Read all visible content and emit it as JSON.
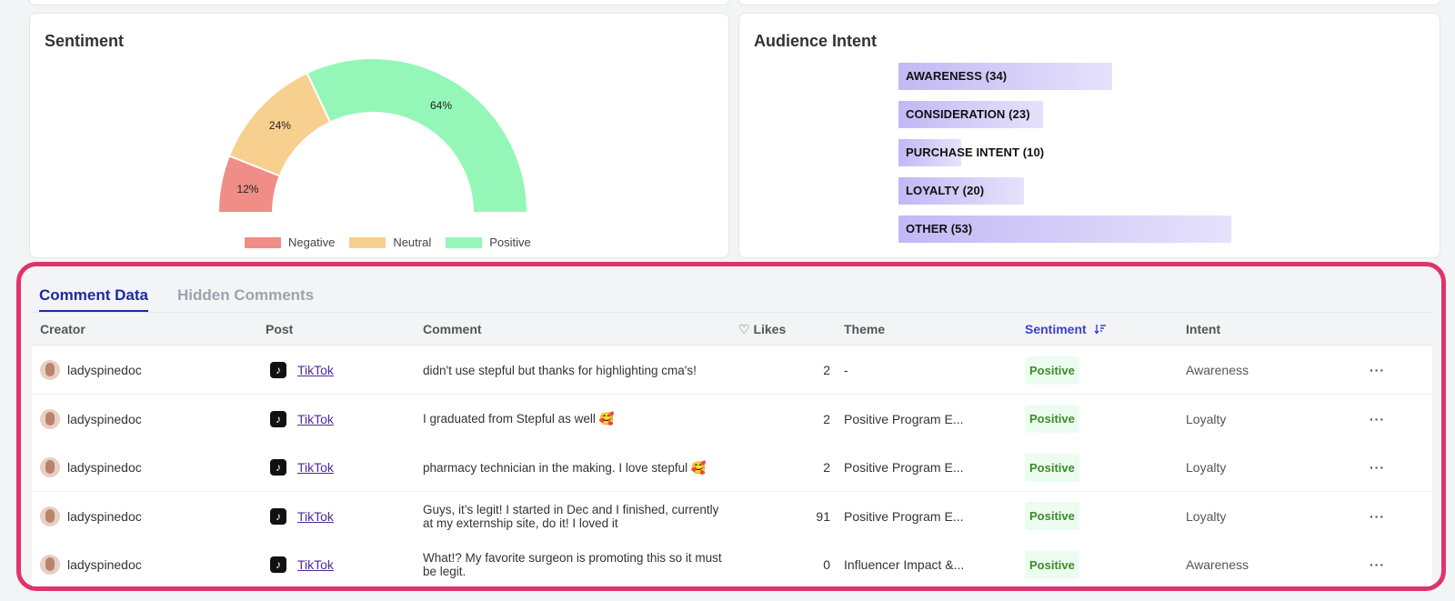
{
  "sentiment": {
    "title": "Sentiment",
    "segments": [
      {
        "name": "Negative",
        "percent": 12,
        "label": "12%",
        "color": "#ef8d86"
      },
      {
        "name": "Neutral",
        "percent": 24,
        "label": "24%",
        "color": "#f7cf8e"
      },
      {
        "name": "Positive",
        "percent": 64,
        "label": "64%",
        "color": "#95f7b7"
      }
    ]
  },
  "audience_intent": {
    "title": "Audience Intent",
    "items": [
      {
        "label": "AWARENESS (34)",
        "value": 34
      },
      {
        "label": "CONSIDERATION (23)",
        "value": 23
      },
      {
        "label": "PURCHASE INTENT (10)",
        "value": 10
      },
      {
        "label": "LOYALTY (20)",
        "value": 20
      },
      {
        "label": "OTHER (53)",
        "value": 53
      }
    ],
    "bar_color": "#c2b8f5"
  },
  "tabs": [
    {
      "label": "Comment Data",
      "active": true
    },
    {
      "label": "Hidden Comments",
      "active": false
    }
  ],
  "columns": {
    "creator": "Creator",
    "post": "Post",
    "comment": "Comment",
    "likes": "Likes",
    "likes_icon": "heart-outline-icon",
    "theme": "Theme",
    "sentiment": "Sentiment",
    "sort_icon": "sort-descending-icon",
    "intent": "Intent"
  },
  "rows": [
    {
      "creator": "ladyspinedoc",
      "post": "TikTok",
      "comment": "didn't use stepful but thanks for highlighting cma's!",
      "likes": "2",
      "theme": "-",
      "sentiment": "Positive",
      "intent": "Awareness"
    },
    {
      "creator": "ladyspinedoc",
      "post": "TikTok",
      "comment": "I graduated from Stepful as well 🥰",
      "likes": "2",
      "theme": "Positive Program E...",
      "sentiment": "Positive",
      "intent": "Loyalty"
    },
    {
      "creator": "ladyspinedoc",
      "post": "TikTok",
      "comment": "pharmacy technician in the making. I love stepful 🥰",
      "likes": "2",
      "theme": "Positive Program E...",
      "sentiment": "Positive",
      "intent": "Loyalty"
    },
    {
      "creator": "ladyspinedoc",
      "post": "TikTok",
      "comment": "Guys, it’s legit! I started in Dec and I finished, currently at my externship site, do it! I loved it",
      "likes": "91",
      "theme": "Positive Program E...",
      "sentiment": "Positive",
      "intent": "Loyalty"
    },
    {
      "creator": "ladyspinedoc",
      "post": "TikTok",
      "comment": "What!? My favorite surgeon is promoting this so it must be legit.",
      "likes": "0",
      "theme": "Influencer Impact &...",
      "sentiment": "Positive",
      "intent": "Awareness"
    }
  ],
  "row_menu": "···",
  "colors": {
    "accent": "#1e2a9e",
    "highlight_border": "#e0336c",
    "positive_text": "#3f8a2b"
  }
}
